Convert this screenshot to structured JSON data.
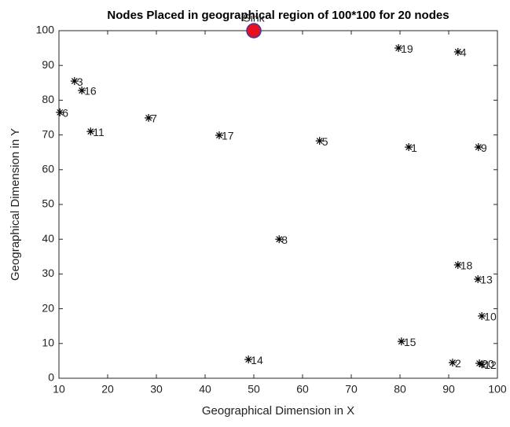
{
  "chart_data": {
    "type": "scatter",
    "title": "Nodes Placed in geographical region of 100*100 for 20 nodes",
    "xlabel": "Geographical Dimension in X",
    "ylabel": "Geographical Dimension in Y",
    "xlim": [
      10,
      100
    ],
    "xticks": [
      10,
      20,
      30,
      40,
      50,
      60,
      70,
      80,
      90,
      100
    ],
    "ylim": [
      0,
      100
    ],
    "yticks": [
      0,
      10,
      20,
      30,
      40,
      50,
      60,
      70,
      80,
      90,
      100
    ],
    "series": [
      {
        "marker": "asterisk",
        "color": "#000000",
        "labels": [
          "1",
          "2",
          "3",
          "4",
          "5",
          "6",
          "7",
          "8",
          "9",
          "10",
          "11",
          "12",
          "13",
          "14",
          "15",
          "16",
          "17",
          "18",
          "19",
          "20"
        ],
        "x": [
          81.8,
          90.8,
          13.2,
          91.9,
          63.5,
          10.2,
          28.4,
          55.2,
          96.1,
          96.8,
          16.5,
          96.8,
          96,
          48.9,
          80.3,
          14.7,
          42.9,
          91.9,
          79.7,
          96.3
        ],
        "values": [
          66.5,
          4.5,
          85.5,
          93.9,
          68.3,
          76.5,
          74.9,
          40,
          66.5,
          17.9,
          71,
          4,
          28.5,
          5.4,
          10.6,
          82.8,
          69.9,
          32.6,
          95,
          4.3
        ]
      },
      {
        "marker": "circle",
        "color": "#e8101e",
        "edgecolor": "#3a3aa8",
        "labels": [
          "Sink"
        ],
        "x": [
          50
        ],
        "values": [
          100
        ]
      }
    ]
  }
}
